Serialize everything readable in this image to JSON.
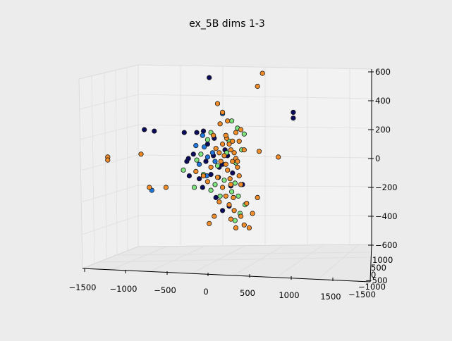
{
  "chart_data": {
    "type": "scatter",
    "projection": "3d",
    "title": "ex_5B dims 1-3",
    "xlabel": "",
    "ylabel": "",
    "zlabel": "",
    "xlim": [
      -1500,
      1500
    ],
    "ylim": [
      -1500,
      1000
    ],
    "zlim": [
      -600,
      600
    ],
    "x_ticks": [
      "−1500",
      "−1000",
      "−500",
      "0",
      "500",
      "1000",
      "1500"
    ],
    "y_ticks": [
      "1000",
      "500",
      "0",
      "−500",
      "−1000",
      "−1500"
    ],
    "z_ticks": [
      "600",
      "400",
      "200",
      "0",
      "−200",
      "−400",
      "−600"
    ],
    "grid": true,
    "legend": false,
    "series": [
      {
        "color": "#0b0b5e",
        "points": [
          [
            40,
            560
          ],
          [
            1050,
            320
          ],
          [
            1050,
            280
          ],
          [
            -740,
            200
          ],
          [
            -620,
            190
          ],
          [
            -30,
            190
          ],
          [
            -260,
            180
          ],
          [
            -110,
            180
          ],
          [
            100,
            140
          ],
          [
            -230,
            -20
          ],
          [
            -210,
            0
          ],
          [
            -150,
            30
          ],
          [
            -200,
            -120
          ],
          [
            150,
            -130
          ],
          [
            300,
            -190
          ],
          [
            440,
            -180
          ],
          [
            -40,
            -200
          ],
          [
            120,
            -270
          ],
          [
            200,
            -360
          ],
          [
            280,
            -330
          ],
          [
            230,
            60
          ],
          [
            90,
            20
          ],
          [
            -80,
            -140
          ],
          [
            200,
            -40
          ],
          [
            320,
            -100
          ],
          [
            20,
            100
          ],
          [
            160,
            -60
          ],
          [
            0,
            -20
          ],
          [
            60,
            -110
          ],
          [
            260,
            20
          ]
        ]
      },
      {
        "color": "#1f77e0",
        "points": [
          [
            200,
            310
          ],
          [
            -120,
            90
          ],
          [
            20,
            10
          ],
          [
            -650,
            -220
          ],
          [
            -20,
            80
          ],
          [
            -80,
            -40
          ],
          [
            10,
            -120
          ],
          [
            80,
            40
          ],
          [
            -40,
            160
          ],
          [
            110,
            -20
          ]
        ]
      },
      {
        "color": "#7fe57f",
        "points": [
          [
            310,
            260
          ],
          [
            380,
            210
          ],
          [
            460,
            170
          ],
          [
            -270,
            -80
          ],
          [
            -140,
            -200
          ],
          [
            60,
            -220
          ],
          [
            470,
            -320
          ],
          [
            410,
            -380
          ],
          [
            350,
            -430
          ],
          [
            350,
            -170
          ],
          [
            140,
            -50
          ],
          [
            -110,
            -10
          ],
          [
            220,
            -150
          ],
          [
            360,
            -30
          ],
          [
            430,
            60
          ],
          [
            -30,
            -110
          ],
          [
            280,
            120
          ],
          [
            60,
            180
          ],
          [
            170,
            -260
          ],
          [
            -60,
            30
          ],
          [
            310,
            -230
          ],
          [
            250,
            40
          ],
          [
            390,
            -260
          ],
          [
            110,
            -180
          ],
          [
            20,
            130
          ]
        ]
      },
      {
        "color": "#f28c28",
        "points": [
          [
            680,
            590
          ],
          [
            620,
            500
          ],
          [
            320,
            -20
          ],
          [
            360,
            0
          ],
          [
            300,
            60
          ],
          [
            280,
            100
          ],
          [
            340,
            40
          ],
          [
            240,
            -40
          ],
          [
            400,
            -120
          ],
          [
            260,
            -80
          ],
          [
            380,
            -60
          ],
          [
            220,
            20
          ],
          [
            180,
            -20
          ],
          [
            320,
            120
          ],
          [
            360,
            180
          ],
          [
            420,
            200
          ],
          [
            460,
            60
          ],
          [
            300,
            -180
          ],
          [
            200,
            -200
          ],
          [
            240,
            -260
          ],
          [
            160,
            -300
          ],
          [
            280,
            -320
          ],
          [
            340,
            -360
          ],
          [
            420,
            -400
          ],
          [
            460,
            -460
          ],
          [
            520,
            -480
          ],
          [
            560,
            -380
          ],
          [
            100,
            -400
          ],
          [
            40,
            -450
          ],
          [
            620,
            -270
          ],
          [
            -1180,
            10
          ],
          [
            -1180,
            -10
          ],
          [
            -780,
            30
          ],
          [
            -680,
            -200
          ],
          [
            -480,
            -200
          ],
          [
            -30,
            -120
          ],
          [
            -120,
            -90
          ],
          [
            640,
            50
          ],
          [
            870,
            10
          ],
          [
            140,
            380
          ],
          [
            200,
            320
          ],
          [
            170,
            240
          ],
          [
            250,
            140
          ],
          [
            200,
            100
          ],
          [
            120,
            70
          ],
          [
            90,
            160
          ],
          [
            60,
            -60
          ],
          [
            20,
            -160
          ],
          [
            260,
            260
          ],
          [
            380,
            -20
          ],
          [
            420,
            -180
          ],
          [
            300,
            -420
          ],
          [
            360,
            -480
          ],
          [
            490,
            -310
          ],
          [
            140,
            -130
          ],
          [
            330,
            -270
          ],
          [
            240,
            160
          ],
          [
            160,
            40
          ],
          [
            290,
            -140
          ],
          [
            400,
            120
          ]
        ]
      }
    ]
  }
}
